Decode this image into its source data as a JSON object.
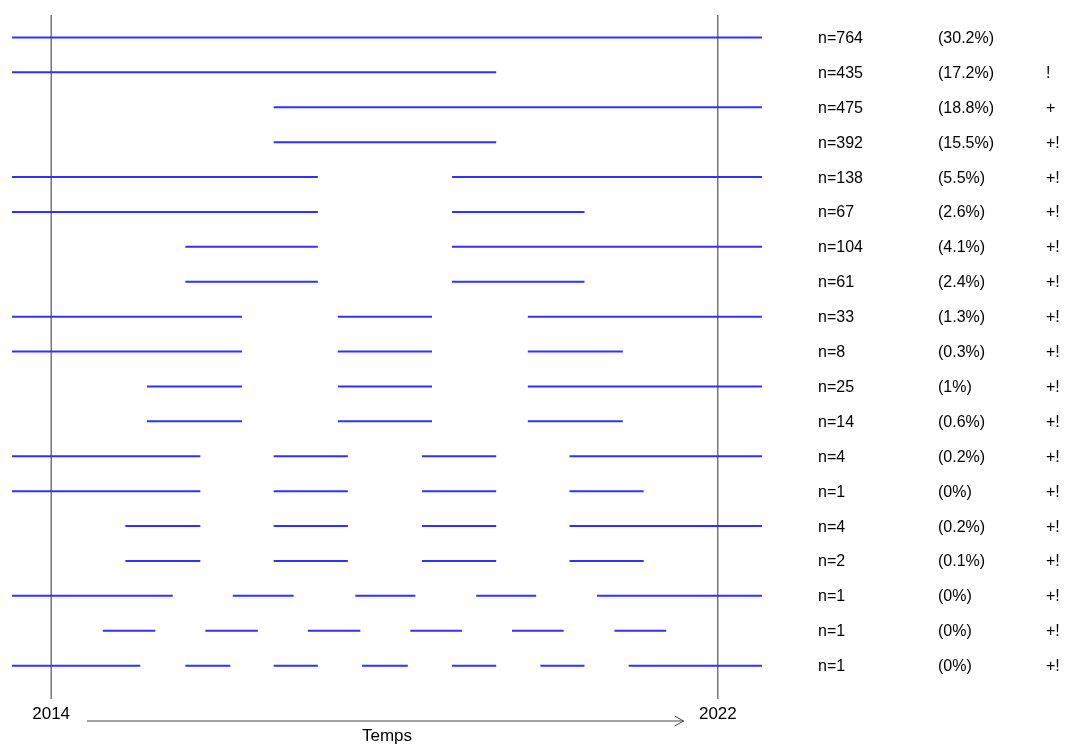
{
  "chart_data": {
    "type": "bar",
    "orientation": "horizontal",
    "xlabel": "Temps",
    "xlim": [
      2013.53,
      2022.53
    ],
    "xticks": [
      2014,
      2022
    ],
    "grid": "x",
    "categories": [
      "n=764",
      "n=435",
      "n=475",
      "n=392",
      "n=138",
      "n=67",
      "n=104",
      "n=61",
      "n=33",
      "n=8",
      "n=25",
      "n=14",
      "n=4",
      "n=1",
      "n=4",
      "n=2",
      "n=1",
      "n=1",
      "n=1"
    ],
    "series": [
      {
        "color": "#3030ff",
        "base": [
          2013.53,
          2013.53,
          2016.67,
          2016.67,
          2013.53,
          2013.53,
          2015.61,
          2015.61,
          2013.53,
          2013.53,
          2015.15,
          2015.15,
          2013.53,
          2013.53,
          2014.89,
          2014.89,
          2013.53,
          2014.62,
          2013.53
        ],
        "values": [
          9.0,
          5.81,
          5.86,
          2.67,
          3.67,
          3.67,
          1.59,
          1.59,
          2.76,
          2.76,
          1.14,
          1.14,
          2.26,
          2.26,
          0.9,
          0.9,
          1.93,
          0.63,
          1.54
        ]
      },
      {
        "color": "#3030ff",
        "base": [
          null,
          null,
          null,
          null,
          2018.81,
          2018.81,
          2018.81,
          2018.81,
          2017.44,
          2017.44,
          2017.44,
          2017.44,
          2016.67,
          2016.67,
          2016.67,
          2016.67,
          2016.18,
          2015.85,
          2015.61
        ],
        "values": [
          null,
          null,
          null,
          null,
          3.72,
          1.59,
          3.72,
          1.59,
          1.13,
          1.13,
          1.13,
          1.13,
          0.89,
          0.89,
          0.89,
          0.89,
          0.73,
          0.63,
          0.54
        ]
      },
      {
        "color": "#3030ff",
        "base": [
          null,
          null,
          null,
          null,
          null,
          null,
          null,
          null,
          2019.72,
          2019.72,
          2019.72,
          2019.72,
          2018.45,
          2018.45,
          2018.45,
          2018.45,
          2017.65,
          2017.08,
          2016.67
        ],
        "values": [
          null,
          null,
          null,
          null,
          null,
          null,
          null,
          null,
          2.81,
          1.14,
          2.81,
          1.14,
          0.89,
          0.89,
          0.89,
          0.89,
          0.72,
          0.63,
          0.53
        ]
      },
      {
        "color": "#3030ff",
        "base": [
          null,
          null,
          null,
          null,
          null,
          null,
          null,
          null,
          null,
          null,
          null,
          null,
          2020.22,
          2020.22,
          2020.22,
          2020.22,
          2019.1,
          2018.31,
          2017.73
        ],
        "values": [
          null,
          null,
          null,
          null,
          null,
          null,
          null,
          null,
          null,
          null,
          null,
          null,
          2.31,
          0.89,
          2.31,
          0.89,
          0.72,
          0.62,
          0.55
        ]
      },
      {
        "color": "#3030ff",
        "base": [
          null,
          null,
          null,
          null,
          null,
          null,
          null,
          null,
          null,
          null,
          null,
          null,
          null,
          null,
          null,
          null,
          2020.55,
          2019.53,
          2018.81
        ],
        "values": [
          null,
          null,
          null,
          null,
          null,
          null,
          null,
          null,
          null,
          null,
          null,
          null,
          null,
          null,
          null,
          null,
          1.98,
          0.62,
          0.53
        ]
      },
      {
        "color": "#3030ff",
        "base": [
          null,
          null,
          null,
          null,
          null,
          null,
          null,
          null,
          null,
          null,
          null,
          null,
          null,
          null,
          null,
          null,
          null,
          2020.76,
          2019.87
        ],
        "values": [
          null,
          null,
          null,
          null,
          null,
          null,
          null,
          null,
          null,
          null,
          null,
          null,
          null,
          null,
          null,
          null,
          null,
          0.62,
          0.53
        ]
      },
      {
        "color": "#3030ff",
        "base": [
          null,
          null,
          null,
          null,
          null,
          null,
          null,
          null,
          null,
          null,
          null,
          null,
          null,
          null,
          null,
          null,
          null,
          null,
          2020.93
        ],
        "values": [
          null,
          null,
          null,
          null,
          null,
          null,
          null,
          null,
          null,
          null,
          null,
          null,
          null,
          null,
          null,
          null,
          null,
          null,
          1.6
        ]
      }
    ],
    "annotations": [
      "(30.2%)",
      "(17.2%)",
      "(18.8%)",
      "(15.5%)",
      "(5.5%)",
      "(2.6%)",
      "(4.1%)",
      "(2.4%)",
      "(1.3%)",
      "(0.3%)",
      "(1%)",
      "(0.6%)",
      "(0.2%)",
      "(0%)",
      "(0.2%)",
      "(0.1%)",
      "(0%)",
      "(0%)",
      "(0%)",
      "!",
      "+",
      "+!",
      "+!",
      "+!",
      "+!",
      "+!",
      "+!",
      "+!",
      "+!",
      "+!",
      "+!",
      "+!",
      "+!",
      "+!",
      "+!",
      "+!",
      "+!"
    ]
  }
}
